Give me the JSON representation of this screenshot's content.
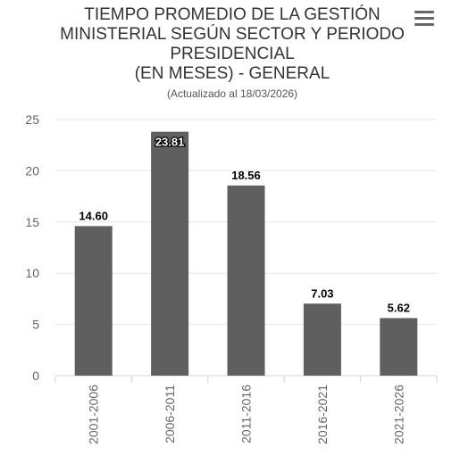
{
  "header": {
    "title_lines": [
      "TIEMPO PROMEDIO DE LA GESTIÓN",
      "MINISTERIAL SEGÚN SECTOR Y PERIODO",
      "PRESIDENCIAL",
      "(EN MESES) - GENERAL"
    ],
    "subtitle": "(Actualizado al 18/03/2026)"
  },
  "menu": {
    "icon": "hamburger-menu-icon"
  },
  "colors": {
    "bar": "#5f5f5f",
    "grid": "#e6e6e6",
    "axis": "#ccd6eb"
  },
  "chart_data": {
    "type": "bar",
    "title": "TIEMPO PROMEDIO DE LA GESTIÓN MINISTERIAL SEGÚN SECTOR Y PERIODO PRESIDENCIAL (EN MESES) - GENERAL",
    "subtitle": "(Actualizado al 18/03/2026)",
    "categories": [
      "2001-2006",
      "2006-2011",
      "2011-2016",
      "2016-2021",
      "2021-2026"
    ],
    "values": [
      14.6,
      23.81,
      18.56,
      7.03,
      5.62
    ],
    "value_labels": [
      "14.60",
      "23.81",
      "18.56",
      "7.03",
      "5.62"
    ],
    "yticks": [
      0,
      5,
      10,
      15,
      20,
      25
    ],
    "ylim": [
      0,
      25
    ],
    "grid": true,
    "legend": false
  }
}
